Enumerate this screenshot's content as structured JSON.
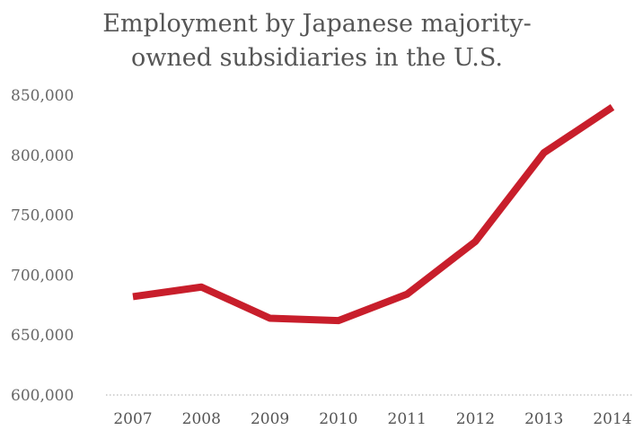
{
  "chart_data": {
    "type": "line",
    "title_lines": [
      "Employment by Japanese majority-",
      "owned subsidiaries in the U.S."
    ],
    "xlabel": "",
    "ylabel": "",
    "categories": [
      "2007",
      "2008",
      "2009",
      "2010",
      "2011",
      "2012",
      "2013",
      "2014"
    ],
    "series": [
      {
        "values": [
          682000,
          690000,
          664000,
          662000,
          684000,
          728000,
          802000,
          840000
        ]
      }
    ],
    "yticks": [
      600000,
      650000,
      700000,
      750000,
      800000,
      850000
    ],
    "ytick_labels": [
      "600,000",
      "650,000",
      "700,000",
      "750,000",
      "800,000",
      "850,000"
    ],
    "ylim": [
      600000,
      850000
    ],
    "grid": false,
    "colors": {
      "line": "#c81e2b",
      "axis": "#bbbbbb"
    }
  }
}
